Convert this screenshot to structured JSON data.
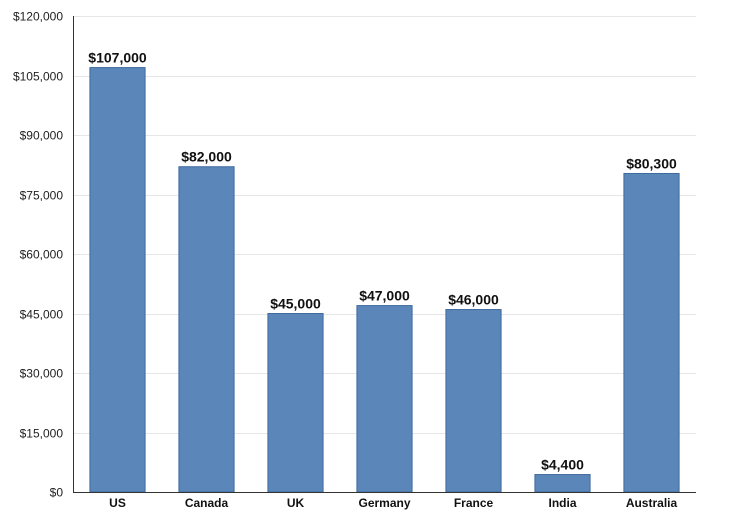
{
  "chart_data": {
    "type": "bar",
    "title": "",
    "xlabel": "",
    "ylabel": "",
    "categories": [
      "US",
      "Canada",
      "UK",
      "Germany",
      "France",
      "India",
      "Australia"
    ],
    "values": [
      107000,
      82000,
      45000,
      47000,
      46000,
      4400,
      80300
    ],
    "data_labels": [
      "$107,000",
      "$82,000",
      "$45,000",
      "$47,000",
      "$46,000",
      "$4,400",
      "$80,300"
    ],
    "ylim": [
      0,
      120000
    ],
    "yticks": [
      0,
      15000,
      30000,
      45000,
      60000,
      75000,
      90000,
      105000,
      120000
    ],
    "ytick_labels": [
      "$0",
      "$15,000",
      "$30,000",
      "$45,000",
      "$60,000",
      "$75,000",
      "$90,000",
      "$105,000",
      "$120,000"
    ],
    "grid": true,
    "legend": "none",
    "colors": {
      "bar": "#5b86b9",
      "bar_edge": "#3f6a9e",
      "grid": "#e6e6e6",
      "axis": "#333333"
    }
  }
}
